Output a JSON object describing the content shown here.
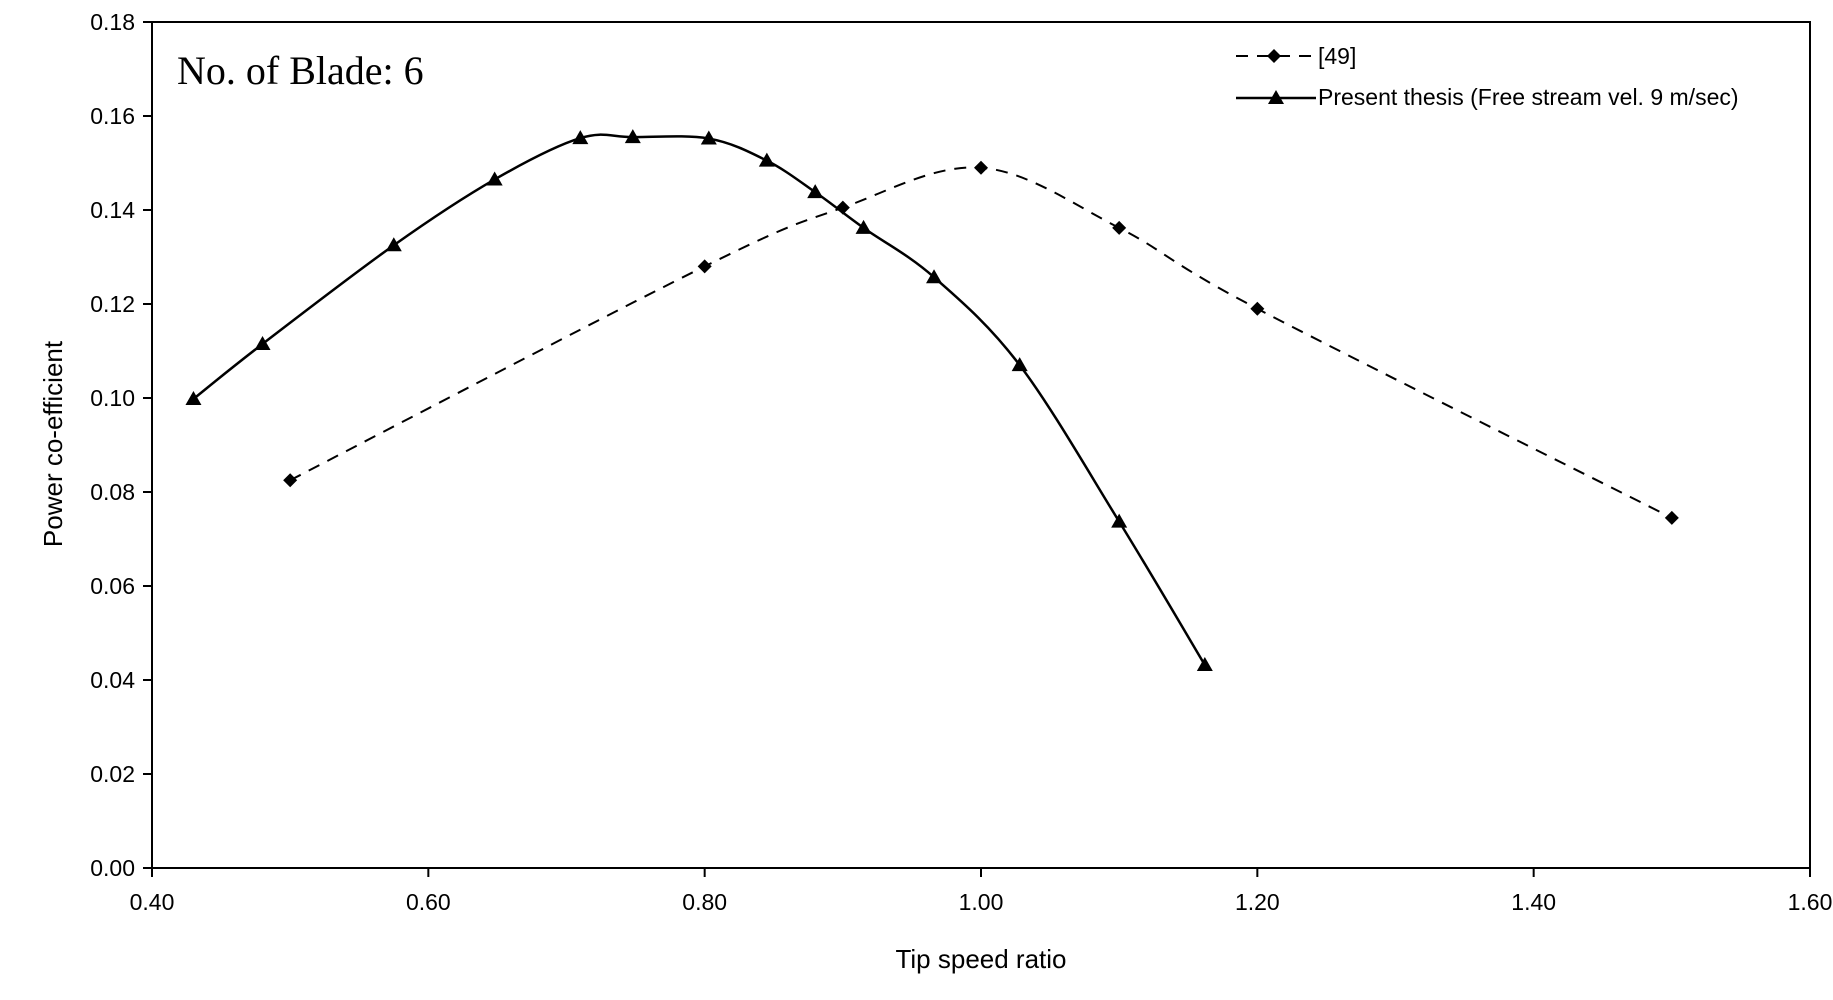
{
  "chart_data": {
    "type": "line",
    "title": "",
    "annotation": "No. of Blade: 6",
    "xlabel": "Tip speed ratio",
    "ylabel": "Power co-efficient",
    "xlim": [
      0.4,
      1.6
    ],
    "ylim": [
      0.0,
      0.18
    ],
    "x_ticks": [
      "0.40",
      "0.60",
      "0.80",
      "1.00",
      "1.20",
      "1.40",
      "1.60"
    ],
    "y_ticks": [
      "0.00",
      "0.02",
      "0.04",
      "0.06",
      "0.08",
      "0.10",
      "0.12",
      "0.14",
      "0.16",
      "0.18"
    ],
    "grid": false,
    "legend_position": "top-right",
    "series": [
      {
        "name": "[49]",
        "line_style": "dashed",
        "marker": "diamond",
        "color": "#000000",
        "x": [
          0.5,
          0.8,
          0.9,
          1.0,
          1.1,
          1.2,
          1.5
        ],
        "y": [
          0.0825,
          0.128,
          0.1405,
          0.149,
          0.1362,
          0.119,
          0.0745
        ]
      },
      {
        "name": "Present thesis (Free stream vel. 9 m/sec)",
        "line_style": "solid",
        "marker": "triangle",
        "color": "#000000",
        "x": [
          0.43,
          0.48,
          0.575,
          0.648,
          0.71,
          0.748,
          0.803,
          0.845,
          0.88,
          0.915,
          0.966,
          1.028,
          1.1,
          1.162
        ],
        "y": [
          0.0998,
          0.1115,
          0.1325,
          0.1465,
          0.1553,
          0.1555,
          0.1552,
          0.1505,
          0.1438,
          0.1362,
          0.1257,
          0.107,
          0.0737,
          0.0432
        ]
      }
    ]
  }
}
